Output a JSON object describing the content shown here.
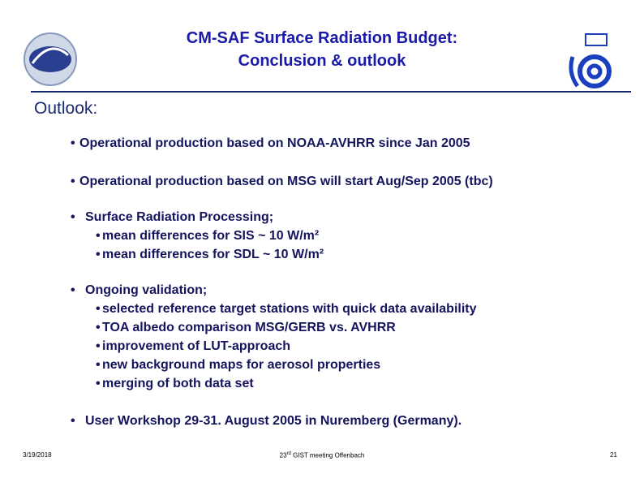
{
  "header": {
    "title_lines": [
      "CM-SAF Surface Radiation Budget:",
      "Conclusion & outlook"
    ]
  },
  "section": {
    "heading": "Outlook:",
    "items": [
      {
        "text": "Operational production based on NOAA-AVHRR since Jan 2005",
        "subitems": []
      },
      {
        "text": "Operational production based on MSG will start Aug/Sep 2005 (tbc)",
        "subitems": []
      },
      {
        "text": "Surface Radiation Processing;",
        "subitems": [
          "mean differences for SIS  ~ 10 W/m²",
          "mean differences for SDL ~ 10 W/m²"
        ]
      },
      {
        "text": "Ongoing validation;",
        "subitems": [
          "selected reference target stations with quick data availability",
          "TOA albedo comparison MSG/GERB vs. AVHRR",
          "improvement of LUT-approach",
          "new background maps for aerosol properties",
          "merging of both data set"
        ]
      },
      {
        "text": "User Workshop 29-31. August 2005 in Nuremberg (Germany).",
        "subitems": []
      }
    ]
  },
  "footer": {
    "date": "3/19/2018",
    "event_number": "23",
    "event_suffix": "rd",
    "event_text": "GIST meeting Offenbach",
    "page": "21"
  }
}
